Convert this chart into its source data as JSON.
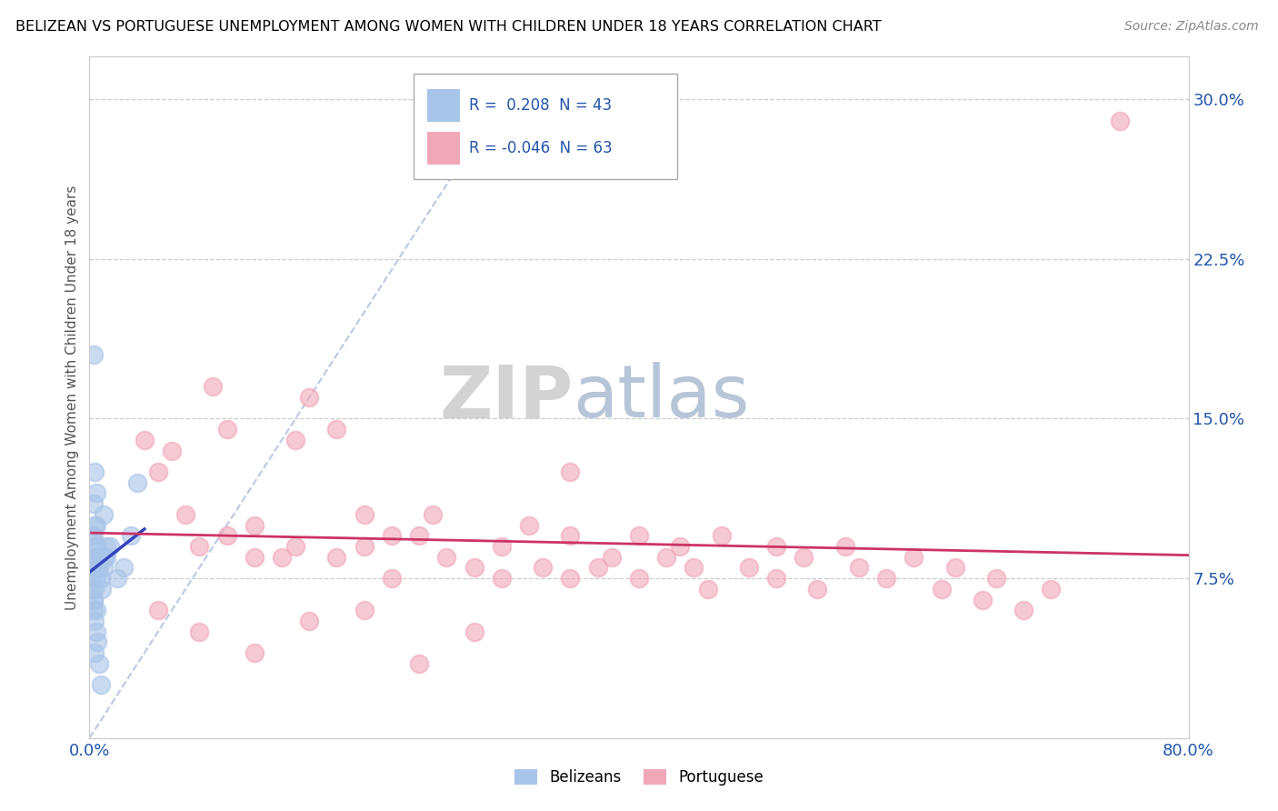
{
  "title": "BELIZEAN VS PORTUGUESE UNEMPLOYMENT AMONG WOMEN WITH CHILDREN UNDER 18 YEARS CORRELATION CHART",
  "source": "Source: ZipAtlas.com",
  "ylabel_label": "Unemployment Among Women with Children Under 18 years",
  "legend_labels": [
    "Belizeans",
    "Portuguese"
  ],
  "belizean_R": "0.208",
  "belizean_N": "43",
  "portuguese_R": "-0.046",
  "portuguese_N": "63",
  "belizean_color": "#a8c4e8",
  "portuguese_color": "#f0a8b8",
  "belizean_line_color": "#3344bb",
  "portuguese_line_color": "#cc3366",
  "diagonal_line_color": "#aabbdd",
  "watermark_zip_color": "#cccccc",
  "watermark_atlas_color": "#aabbd0",
  "background_color": "#ffffff",
  "belizean_x": [
    0.5,
    0.5,
    1.0,
    1.2,
    1.5,
    2.0,
    2.5,
    3.0,
    3.5,
    0.3,
    0.4,
    0.5,
    0.6,
    0.7,
    0.8,
    0.9,
    1.0,
    1.1,
    1.2,
    0.2,
    0.3,
    0.4,
    0.5,
    0.6,
    0.3,
    0.4,
    0.5,
    0.6,
    0.2,
    0.3,
    0.4,
    0.5,
    0.7,
    0.8,
    0.3,
    0.2,
    0.4,
    0.6,
    0.3,
    0.4,
    0.5,
    0.6,
    0.3
  ],
  "belizean_y": [
    11.5,
    9.0,
    10.5,
    8.5,
    9.0,
    7.5,
    8.0,
    9.5,
    12.0,
    8.5,
    8.0,
    7.5,
    8.5,
    8.0,
    7.5,
    7.0,
    8.0,
    8.5,
    9.0,
    7.5,
    6.5,
    5.5,
    6.0,
    4.5,
    9.5,
    10.0,
    9.0,
    8.5,
    7.0,
    6.0,
    4.0,
    5.0,
    3.5,
    2.5,
    11.0,
    9.5,
    7.0,
    8.0,
    18.0,
    12.5,
    10.0,
    8.5,
    6.5
  ],
  "portuguese_x": [
    4.0,
    5.0,
    6.0,
    7.0,
    8.0,
    9.0,
    10.0,
    10.0,
    12.0,
    12.0,
    14.0,
    15.0,
    15.0,
    16.0,
    18.0,
    18.0,
    20.0,
    20.0,
    22.0,
    22.0,
    24.0,
    25.0,
    26.0,
    28.0,
    30.0,
    30.0,
    32.0,
    33.0,
    35.0,
    35.0,
    37.0,
    38.0,
    40.0,
    40.0,
    42.0,
    43.0,
    44.0,
    45.0,
    46.0,
    48.0,
    50.0,
    50.0,
    52.0,
    53.0,
    55.0,
    56.0,
    58.0,
    60.0,
    62.0,
    63.0,
    65.0,
    66.0,
    68.0,
    70.0,
    5.0,
    8.0,
    12.0,
    16.0,
    20.0,
    24.0,
    28.0,
    35.0,
    75.0
  ],
  "portuguese_y": [
    14.0,
    12.5,
    13.5,
    10.5,
    9.0,
    16.5,
    9.5,
    14.5,
    10.0,
    8.5,
    8.5,
    14.0,
    9.0,
    16.0,
    8.5,
    14.5,
    9.0,
    10.5,
    7.5,
    9.5,
    9.5,
    10.5,
    8.5,
    8.0,
    9.0,
    7.5,
    10.0,
    8.0,
    7.5,
    9.5,
    8.0,
    8.5,
    9.5,
    7.5,
    8.5,
    9.0,
    8.0,
    7.0,
    9.5,
    8.0,
    9.0,
    7.5,
    8.5,
    7.0,
    9.0,
    8.0,
    7.5,
    8.5,
    7.0,
    8.0,
    6.5,
    7.5,
    6.0,
    7.0,
    6.0,
    5.0,
    4.0,
    5.5,
    6.0,
    3.5,
    5.0,
    12.5,
    29.0
  ],
  "xmin": 0.0,
  "xmax": 80.0,
  "ymin": 0.0,
  "ymax": 32.0,
  "ytick_vals": [
    7.5,
    15.0,
    22.5,
    30.0
  ],
  "ytick_labels": [
    "7.5%",
    "15.0%",
    "22.5%",
    "30.0%"
  ],
  "xtick_vals": [
    0.0,
    80.0
  ],
  "xtick_labels": [
    "0.0%",
    "80.0%"
  ]
}
